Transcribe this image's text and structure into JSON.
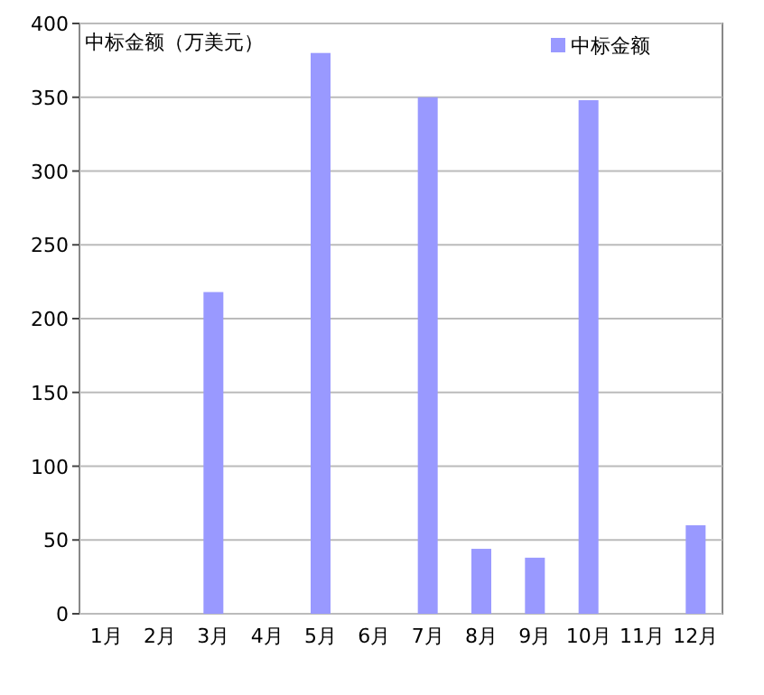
{
  "chart_data": {
    "type": "bar",
    "ylabel": "中标金额（万美元）",
    "categories": [
      "1月",
      "2月",
      "3月",
      "4月",
      "5月",
      "6月",
      "7月",
      "8月",
      "9月",
      "10月",
      "11月",
      "12月"
    ],
    "series": [
      {
        "name": "中标金额",
        "color": "#9999ff",
        "values": [
          0,
          0,
          218,
          0,
          380,
          0,
          350,
          44,
          38,
          348,
          0,
          60
        ]
      }
    ],
    "ylim": [
      0,
      400
    ],
    "yticks": [
      0,
      50,
      100,
      150,
      200,
      250,
      300,
      350,
      400
    ],
    "grid": "y",
    "legend": "top right"
  }
}
